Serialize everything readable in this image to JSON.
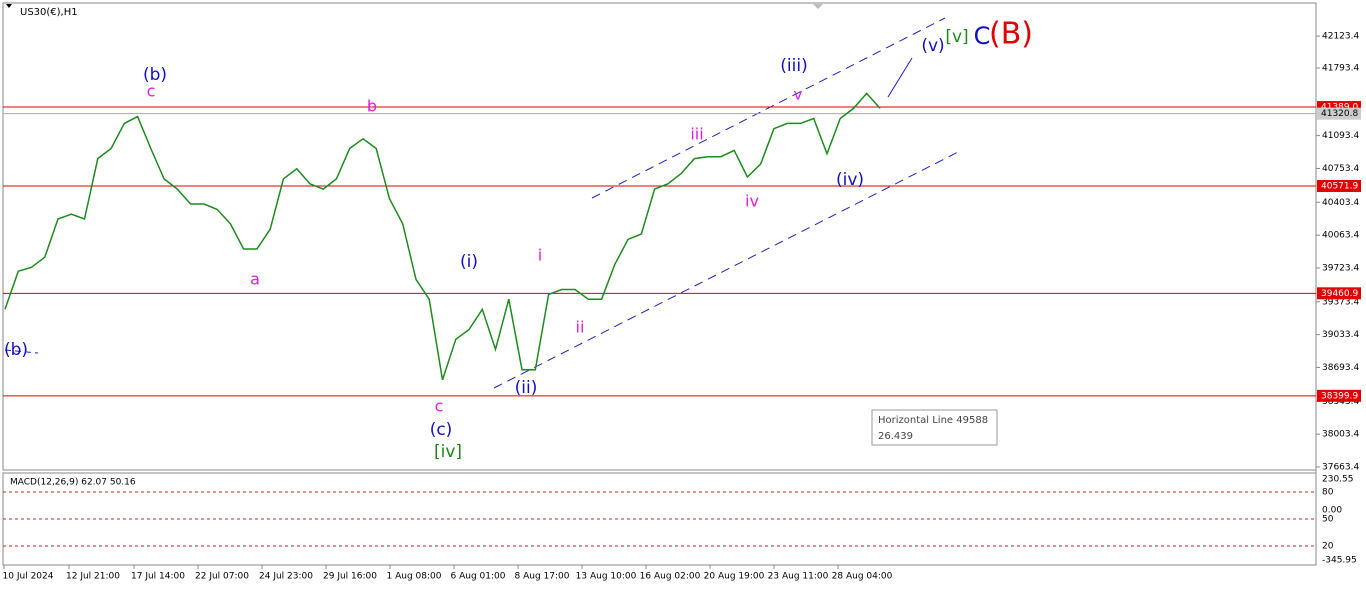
{
  "chart_data": {
    "type": "line",
    "title": "US30(€),H1",
    "color": "#1f8a1f",
    "values": [
      39295,
      39690,
      39730,
      39835,
      40230,
      40280,
      40230,
      40855,
      40960,
      41220,
      41290,
      40960,
      40645,
      40540,
      40385,
      40385,
      40330,
      40180,
      39920,
      39920,
      40125,
      40645,
      40750,
      40595,
      40540,
      40645,
      40960,
      41060,
      40960,
      40440,
      40180,
      39605,
      39400,
      38565,
      38985,
      39085,
      39295,
      38880,
      39400,
      38670,
      38670,
      39450,
      39500,
      39500,
      39400,
      39400,
      39760,
      40020,
      40075,
      40540,
      40595,
      40700,
      40855,
      40875,
      40875,
      40940,
      40665,
      40800,
      41165,
      41220,
      41220,
      41270,
      40905,
      41270,
      41375,
      41530,
      41375
    ],
    "ylim": [
      37632,
      42466
    ],
    "yticks": [
      42123.4,
      41793.4,
      41093.4,
      40753.4,
      40403.4,
      40063.4,
      39723.4,
      39373.4,
      39033.4,
      38693.4,
      38343.4,
      38003.4,
      37663.4
    ],
    "x_labels": [
      "10 Jul 2024",
      "12 Jul 21:00",
      "17 Jul 14:00",
      "22 Jul 07:00",
      "24 Jul 23:00",
      "29 Jul 16:00",
      "1 Aug 08:00",
      "6 Aug 01:00",
      "8 Aug 17:00",
      "13 Aug 10:00",
      "16 Aug 02:00",
      "20 Aug 19:00",
      "23 Aug 11:00",
      "28 Aug 04:00"
    ],
    "level_color": "#e00000",
    "levels": [
      {
        "value": 41389,
        "label": "41389.0"
      },
      40571.9,
      39460.9,
      38399.9
    ],
    "current_price": 41320.8,
    "wave_labels": [
      {
        "text": "(b)",
        "color": "#1010c0"
      },
      {
        "text": "c",
        "color": "#e020e0"
      },
      {
        "text": "b",
        "color": "#e020e0"
      },
      {
        "text": "a",
        "color": "#e020e0"
      },
      {
        "text": "(i)",
        "color": "#1010c0"
      },
      {
        "text": "i",
        "color": "#e020e0"
      },
      {
        "text": "ii",
        "color": "#e020e0"
      },
      {
        "text": "c",
        "color": "#e020e0"
      },
      {
        "text": "(c)",
        "color": "#1010c0"
      },
      {
        "text": "[iv]",
        "color": "#1a8a1a"
      },
      {
        "text": "(ii)",
        "color": "#1010c0"
      },
      {
        "text": "iii",
        "color": "#e020e0"
      },
      {
        "text": "(iii)",
        "color": "#1010c0"
      },
      {
        "text": "v",
        "color": "#e020e0"
      },
      {
        "text": "iv",
        "color": "#e020e0"
      },
      {
        "text": "(iv)",
        "color": "#1010c0"
      },
      {
        "text": "(v)",
        "color": "#1010c0"
      },
      {
        "text": "[v]",
        "color": "#1a8a1a"
      },
      {
        "text": "C",
        "color": "#1010c0"
      },
      {
        "text": "(B)",
        "color": "#e00000"
      },
      {
        "text": "(b)",
        "color": "#1010c0"
      }
    ],
    "tooltip": {
      "title": "Horizontal Line 49588",
      "value": "26.439"
    },
    "macd": {
      "title": "MACD(12,26,9) 62.07 50.16",
      "axis_labels": [
        "230.55",
        "80",
        "0.00",
        "50",
        "20",
        "-345.95"
      ]
    }
  }
}
